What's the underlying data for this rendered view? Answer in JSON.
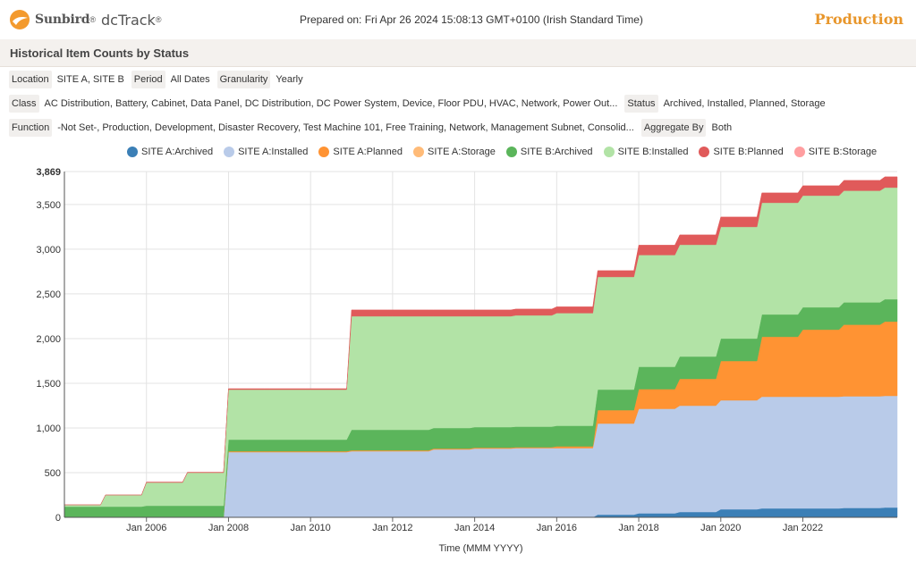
{
  "brand": {
    "name": "Sunbird",
    "product": "dcTrack",
    "reg": "®"
  },
  "prepared_on": "Prepared on: Fri Apr 26 2024 15:08:13 GMT+0100 (Irish Standard Time)",
  "environment": "Production",
  "report_title": "Historical Item Counts by Status",
  "filters": {
    "location": {
      "label": "Location",
      "value": "SITE A, SITE B"
    },
    "period": {
      "label": "Period",
      "value": "All Dates"
    },
    "granularity": {
      "label": "Granularity",
      "value": "Yearly"
    },
    "class": {
      "label": "Class",
      "value": "AC Distribution, Battery, Cabinet, Data Panel, DC Distribution, DC Power System, Device, Floor PDU, HVAC, Network, Power Out..."
    },
    "status": {
      "label": "Status",
      "value": "Archived, Installed, Planned, Storage"
    },
    "function": {
      "label": "Function",
      "value": "-Not Set-, Production, Development, Disaster Recovery, Test Machine 101, Free Training, Network, Management Subnet, Consolid..."
    },
    "aggregate": {
      "label": "Aggregate By",
      "value": "Both"
    }
  },
  "chart_data": {
    "type": "area",
    "stacked": true,
    "step": true,
    "xlabel": "Time (MMM YYYY)",
    "ylabel": "",
    "ylim": [
      0,
      3869
    ],
    "y_ticks": [
      "0",
      "500",
      "1,000",
      "1,500",
      "2,000",
      "2,500",
      "3,000",
      "3,500",
      "3,869"
    ],
    "y_tick_values": [
      0,
      500,
      1000,
      1500,
      2000,
      2500,
      3000,
      3500,
      3869
    ],
    "x_range": [
      2004.0,
      2024.3
    ],
    "x_ticks": [
      "Jan 2006",
      "Jan 2008",
      "Jan 2010",
      "Jan 2012",
      "Jan 2014",
      "Jan 2016",
      "Jan 2018",
      "Jan 2020",
      "Jan 2022"
    ],
    "x_tick_values": [
      2006,
      2008,
      2010,
      2012,
      2014,
      2016,
      2018,
      2020,
      2022
    ],
    "grid": true,
    "legend_position": "top",
    "x": [
      2004.0,
      2005.0,
      2006.0,
      2007.0,
      2008.0,
      2009.0,
      2010.0,
      2011.0,
      2012.0,
      2013.0,
      2014.0,
      2015.0,
      2016.0,
      2017.0,
      2018.0,
      2019.0,
      2020.0,
      2021.0,
      2022.0,
      2023.0,
      2024.0,
      2024.3
    ],
    "series": [
      {
        "name": "SITE A:Archived",
        "color": "#3b7fb6",
        "values": [
          0,
          0,
          0,
          0,
          0,
          0,
          0,
          0,
          0,
          0,
          0,
          0,
          0,
          30,
          45,
          60,
          90,
          100,
          100,
          105,
          110,
          110
        ]
      },
      {
        "name": "SITE A:Installed",
        "color": "#b9cbe9",
        "values": [
          0,
          0,
          0,
          0,
          730,
          730,
          730,
          740,
          740,
          760,
          770,
          775,
          775,
          1020,
          1170,
          1190,
          1220,
          1250,
          1250,
          1250,
          1250,
          1250
        ]
      },
      {
        "name": "SITE A:Planned",
        "color": "#ff9333",
        "values": [
          0,
          0,
          0,
          0,
          10,
          10,
          10,
          10,
          10,
          10,
          10,
          10,
          20,
          150,
          220,
          300,
          440,
          670,
          750,
          800,
          830,
          830
        ]
      },
      {
        "name": "SITE A:Storage",
        "color": "#ffbb78",
        "values": [
          0,
          0,
          0,
          0,
          0,
          0,
          0,
          0,
          0,
          0,
          0,
          0,
          0,
          0,
          0,
          0,
          0,
          0,
          0,
          0,
          0,
          0
        ]
      },
      {
        "name": "SITE B:Archived",
        "color": "#5bb55b",
        "values": [
          120,
          120,
          130,
          130,
          130,
          130,
          130,
          230,
          230,
          230,
          230,
          230,
          230,
          230,
          250,
          250,
          250,
          250,
          250,
          250,
          250,
          250
        ]
      },
      {
        "name": "SITE B:Installed",
        "color": "#b2e3a6",
        "values": [
          20,
          130,
          260,
          370,
          560,
          560,
          560,
          1270,
          1270,
          1250,
          1240,
          1245,
          1260,
          1260,
          1250,
          1250,
          1250,
          1250,
          1250,
          1250,
          1250,
          1250
        ]
      },
      {
        "name": "SITE B:Planned",
        "color": "#e05a5a",
        "values": [
          0,
          0,
          5,
          5,
          10,
          10,
          10,
          70,
          70,
          70,
          70,
          70,
          70,
          70,
          110,
          110,
          110,
          110,
          110,
          115,
          120,
          120
        ]
      },
      {
        "name": "SITE B:Storage",
        "color": "#ff9ea0",
        "values": [
          0,
          0,
          0,
          0,
          0,
          0,
          0,
          0,
          0,
          0,
          0,
          0,
          0,
          0,
          0,
          0,
          0,
          0,
          0,
          0,
          0,
          0
        ]
      }
    ]
  }
}
